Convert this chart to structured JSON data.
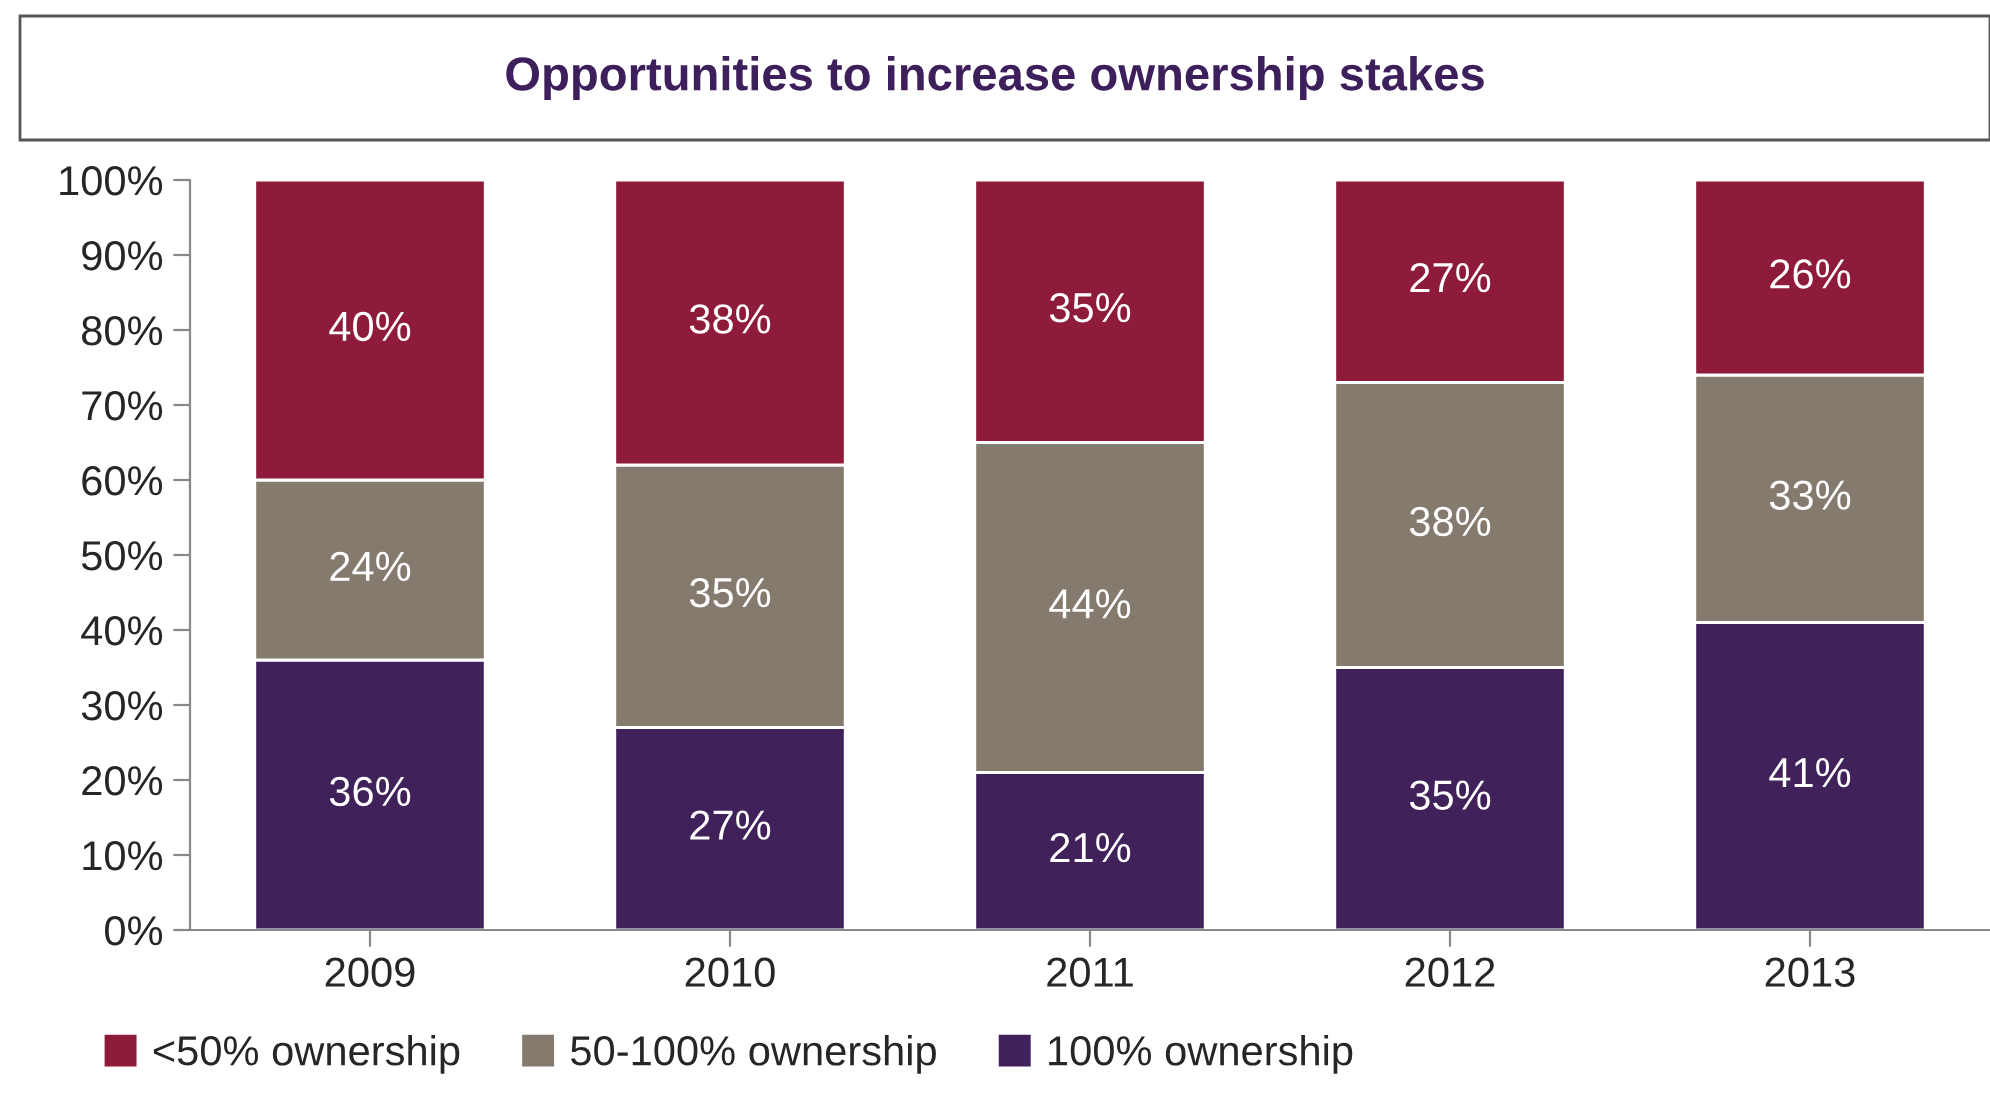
{
  "chart_data": {
    "type": "bar",
    "title": "Opportunities to increase ownership stakes",
    "stacked": true,
    "categories": [
      "2009",
      "2010",
      "2011",
      "2012",
      "2013"
    ],
    "series": [
      {
        "name": "100% ownership",
        "color": "#41215a",
        "values": [
          36,
          27,
          21,
          35,
          41
        ],
        "value_labels": [
          "36%",
          "27%",
          "21%",
          "35%",
          "41%"
        ]
      },
      {
        "name": "50-100% ownership",
        "color": "#857a6e",
        "values": [
          24,
          35,
          44,
          38,
          33
        ],
        "value_labels": [
          "24%",
          "35%",
          "44%",
          "38%",
          "33%"
        ]
      },
      {
        "name": "<50% ownership",
        "color": "#8e1b3a",
        "values": [
          40,
          38,
          35,
          27,
          26
        ],
        "value_labels": [
          "40%",
          "38%",
          "35%",
          "27%",
          "26%"
        ]
      }
    ],
    "ylim": [
      0,
      100
    ],
    "yticks": [
      {
        "value": 0,
        "label": "0%"
      },
      {
        "value": 10,
        "label": "10%"
      },
      {
        "value": 20,
        "label": "20%"
      },
      {
        "value": 30,
        "label": "30%"
      },
      {
        "value": 40,
        "label": "40%"
      },
      {
        "value": 50,
        "label": "50%"
      },
      {
        "value": 60,
        "label": "60%"
      },
      {
        "value": 70,
        "label": "70%"
      },
      {
        "value": 80,
        "label": "80%"
      },
      {
        "value": 90,
        "label": "90%"
      },
      {
        "value": 100,
        "label": "100%"
      }
    ],
    "grid": false,
    "legend": "bottom"
  }
}
